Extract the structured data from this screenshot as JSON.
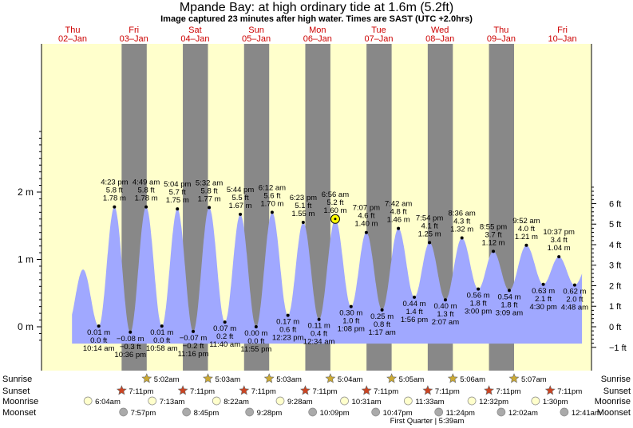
{
  "title": "Mpande Bay: at high  ordinary tide at 1.6m (5.2ft)",
  "subtitle": "Image captured 23 minutes after high water. Times are SAST (UTC +2.0hrs)",
  "colors": {
    "day": "#ffffcc",
    "night": "#888888",
    "tide": "#a0a8ff",
    "day_label": "#cc0000",
    "sun_icon": "#ccaa33",
    "sunset_icon": "#cc4422",
    "moonrise_icon": "#ffffcc",
    "moonset_icon": "#aaaaaa"
  },
  "chart_data": {
    "type": "area",
    "title": "Mpande Bay: at high  ordinary tide at 1.6m (5.2ft)",
    "x_start_day": 2,
    "x_end_day": 10,
    "y_left_unit": "m",
    "ylim": [
      -0.25,
      2.06
    ],
    "y_left_ticks": [
      {
        "value": 0,
        "label": "0 m"
      },
      {
        "value": 1,
        "label": "1 m"
      },
      {
        "value": 2,
        "label": "2 m"
      }
    ],
    "y_right_ticks": [
      {
        "value": -1,
        "label": "−1 ft"
      },
      {
        "value": 0,
        "label": "0 ft"
      },
      {
        "value": 1,
        "label": "1 ft"
      },
      {
        "value": 2,
        "label": "2 ft"
      },
      {
        "value": 3,
        "label": "3 ft"
      },
      {
        "value": 4,
        "label": "4 ft"
      },
      {
        "value": 5,
        "label": "5 ft"
      },
      {
        "value": 6,
        "label": "6 ft"
      }
    ],
    "days": [
      {
        "day": 2,
        "weekday": "Thu",
        "date": "02–Jan"
      },
      {
        "day": 3,
        "weekday": "Fri",
        "date": "03–Jan"
      },
      {
        "day": 4,
        "weekday": "Sat",
        "date": "04–Jan"
      },
      {
        "day": 5,
        "weekday": "Sun",
        "date": "05–Jan"
      },
      {
        "day": 6,
        "weekday": "Mon",
        "date": "06–Jan"
      },
      {
        "day": 7,
        "weekday": "Tue",
        "date": "07–Jan"
      },
      {
        "day": 8,
        "weekday": "Wed",
        "date": "08–Jan"
      },
      {
        "day": 9,
        "weekday": "Thu",
        "date": "09–Jan"
      },
      {
        "day": 10,
        "weekday": "Fri",
        "date": "10–Jan"
      }
    ],
    "nights": [
      {
        "start": 2.8,
        "end": 3.21
      },
      {
        "start": 3.8,
        "end": 4.21
      },
      {
        "start": 4.8,
        "end": 5.21
      },
      {
        "start": 5.8,
        "end": 6.21
      },
      {
        "start": 6.8,
        "end": 7.21
      },
      {
        "start": 7.8,
        "end": 8.21
      },
      {
        "start": 8.8,
        "end": 9.21
      }
    ],
    "extremes": [
      {
        "t": 2.4264,
        "type": "low",
        "m": 0.01,
        "ft": "0.0 ft",
        "m_label": "0.01 m",
        "time": "10:14 am"
      },
      {
        "t": 2.6826,
        "type": "high",
        "m": 1.78,
        "ft": "5.8 ft",
        "m_label": "1.78 m",
        "time": "4:23 pm"
      },
      {
        "t": 2.9417,
        "type": "low",
        "m": -0.08,
        "ft": "−0.3 ft",
        "m_label": "−0.08 m",
        "time": "10:36 pm"
      },
      {
        "t": 3.2007,
        "type": "high",
        "m": 1.78,
        "ft": "5.8 ft",
        "m_label": "1.78 m",
        "time": "4:49 am"
      },
      {
        "t": 3.4569,
        "type": "low",
        "m": 0.01,
        "ft": "0.0 ft",
        "m_label": "0.01 m",
        "time": "10:58 am"
      },
      {
        "t": 3.7111,
        "type": "high",
        "m": 1.75,
        "ft": "5.7 ft",
        "m_label": "1.75 m",
        "time": "5:04 pm"
      },
      {
        "t": 3.9694,
        "type": "low",
        "m": -0.07,
        "ft": "−0.2 ft",
        "m_label": "−0.07 m",
        "time": "11:16 pm"
      },
      {
        "t": 4.2306,
        "type": "high",
        "m": 1.77,
        "ft": "5.8 ft",
        "m_label": "1.77 m",
        "time": "5:32 am"
      },
      {
        "t": 4.4861,
        "type": "low",
        "m": 0.07,
        "ft": "0.2 ft",
        "m_label": "0.07 m",
        "time": "11:40 am"
      },
      {
        "t": 4.7389,
        "type": "high",
        "m": 1.67,
        "ft": "5.5 ft",
        "m_label": "1.67 m",
        "time": "5:44 pm"
      },
      {
        "t": 4.9965,
        "type": "low",
        "m": 0.0,
        "ft": "0.0 ft",
        "m_label": "0.00 m",
        "time": "11:55 pm"
      },
      {
        "t": 5.2583,
        "type": "high",
        "m": 1.7,
        "ft": "5.6 ft",
        "m_label": "1.70 m",
        "time": "6:12 am"
      },
      {
        "t": 5.516,
        "type": "low",
        "m": 0.17,
        "ft": "0.6 ft",
        "m_label": "0.17 m",
        "time": "12:23 pm"
      },
      {
        "t": 5.766,
        "type": "high",
        "m": 1.55,
        "ft": "5.1 ft",
        "m_label": "1.55 m",
        "time": "6:23 pm"
      },
      {
        "t": 6.0236,
        "type": "low",
        "m": 0.11,
        "ft": "0.4 ft",
        "m_label": "0.11 m",
        "time": "12:34 am"
      },
      {
        "t": 6.2889,
        "type": "high",
        "m": 1.6,
        "ft": "5.2 ft",
        "m_label": "1.60 m",
        "time": "6:56 am"
      },
      {
        "t": 6.5472,
        "type": "low",
        "m": 0.3,
        "ft": "1.0 ft",
        "m_label": "0.30 m",
        "time": "1:08 pm"
      },
      {
        "t": 6.7965,
        "type": "high",
        "m": 1.4,
        "ft": "4.6 ft",
        "m_label": "1.40 m",
        "time": "7:07 pm"
      },
      {
        "t": 7.0535,
        "type": "low",
        "m": 0.25,
        "ft": "0.8 ft",
        "m_label": "0.25 m",
        "time": "1:17 am"
      },
      {
        "t": 7.3208,
        "type": "high",
        "m": 1.46,
        "ft": "4.8 ft",
        "m_label": "1.46 m",
        "time": "7:42 am"
      },
      {
        "t": 7.5806,
        "type": "low",
        "m": 0.44,
        "ft": "1.4 ft",
        "m_label": "0.44 m",
        "time": "1:56 pm"
      },
      {
        "t": 7.8292,
        "type": "high",
        "m": 1.25,
        "ft": "4.1 ft",
        "m_label": "1.25 m",
        "time": "7:54 pm"
      },
      {
        "t": 8.0882,
        "type": "low",
        "m": 0.4,
        "ft": "1.3 ft",
        "m_label": "0.40 m",
        "time": "2:07 am"
      },
      {
        "t": 8.3583,
        "type": "high",
        "m": 1.32,
        "ft": "4.3 ft",
        "m_label": "1.32 m",
        "time": "8:36 am"
      },
      {
        "t": 8.625,
        "type": "low",
        "m": 0.56,
        "ft": "1.8 ft",
        "m_label": "0.56 m",
        "time": "3:00 pm"
      },
      {
        "t": 8.8715,
        "type": "high",
        "m": 1.12,
        "ft": "3.7 ft",
        "m_label": "1.12 m",
        "time": "8:55 pm"
      },
      {
        "t": 9.1313,
        "type": "low",
        "m": 0.54,
        "ft": "1.8 ft",
        "m_label": "0.54 m",
        "time": "3:09 am"
      },
      {
        "t": 9.4111,
        "type": "high",
        "m": 1.21,
        "ft": "4.0 ft",
        "m_label": "1.21 m",
        "time": "9:52 am"
      },
      {
        "t": 9.6875,
        "type": "low",
        "m": 0.63,
        "ft": "2.1 ft",
        "m_label": "0.63 m",
        "time": "4:30 pm"
      },
      {
        "t": 9.9424,
        "type": "high",
        "m": 1.04,
        "ft": "3.4 ft",
        "m_label": "1.04 m",
        "time": "10:37 pm"
      },
      {
        "t": 10.2,
        "type": "low",
        "m": 0.62,
        "ft": "2.0 ft",
        "m_label": "0.62 m",
        "time": "4:48 am"
      }
    ],
    "current_time_day": 6.305
  },
  "almanac": {
    "row_labels": {
      "sunrise": "Sunrise",
      "sunset": "Sunset",
      "moonrise": "Moonrise",
      "moonset": "Moonset"
    },
    "sunrise": [
      {
        "t": 3.21,
        "label": "5:02am"
      },
      {
        "t": 4.21,
        "label": "5:03am"
      },
      {
        "t": 5.21,
        "label": "5:03am"
      },
      {
        "t": 6.21,
        "label": "5:04am"
      },
      {
        "t": 7.21,
        "label": "5:05am"
      },
      {
        "t": 8.21,
        "label": "5:06am"
      },
      {
        "t": 9.21,
        "label": "5:07am"
      }
    ],
    "sunset": [
      {
        "t": 2.8,
        "label": "7:11pm"
      },
      {
        "t": 3.8,
        "label": "7:11pm"
      },
      {
        "t": 4.8,
        "label": "7:11pm"
      },
      {
        "t": 5.8,
        "label": "7:11pm"
      },
      {
        "t": 6.8,
        "label": "7:11pm"
      },
      {
        "t": 7.8,
        "label": "7:11pm"
      },
      {
        "t": 8.8,
        "label": "7:11pm"
      },
      {
        "t": 9.8,
        "label": "7:11pm"
      }
    ],
    "moonrise": [
      {
        "t": 2.25,
        "label": "6:04am"
      },
      {
        "t": 3.3,
        "label": "7:13am"
      },
      {
        "t": 4.35,
        "label": "8:22am"
      },
      {
        "t": 5.39,
        "label": "9:28am"
      },
      {
        "t": 6.44,
        "label": "10:31am"
      },
      {
        "t": 7.48,
        "label": "11:33am"
      },
      {
        "t": 8.52,
        "label": "12:32pm"
      },
      {
        "t": 9.56,
        "label": "1:30pm"
      }
    ],
    "moonset": [
      {
        "t": 2.83,
        "label": "7:57pm"
      },
      {
        "t": 3.86,
        "label": "8:45pm"
      },
      {
        "t": 4.89,
        "label": "9:28pm"
      },
      {
        "t": 5.92,
        "label": "10:09pm"
      },
      {
        "t": 6.95,
        "label": "10:47pm"
      },
      {
        "t": 7.98,
        "label": "11:24pm"
      },
      {
        "t": 9.0,
        "label": "12:02am"
      },
      {
        "t": 10.03,
        "label": "12:41am"
      }
    ],
    "moon_phase": "First Quarter | 5:39am"
  }
}
